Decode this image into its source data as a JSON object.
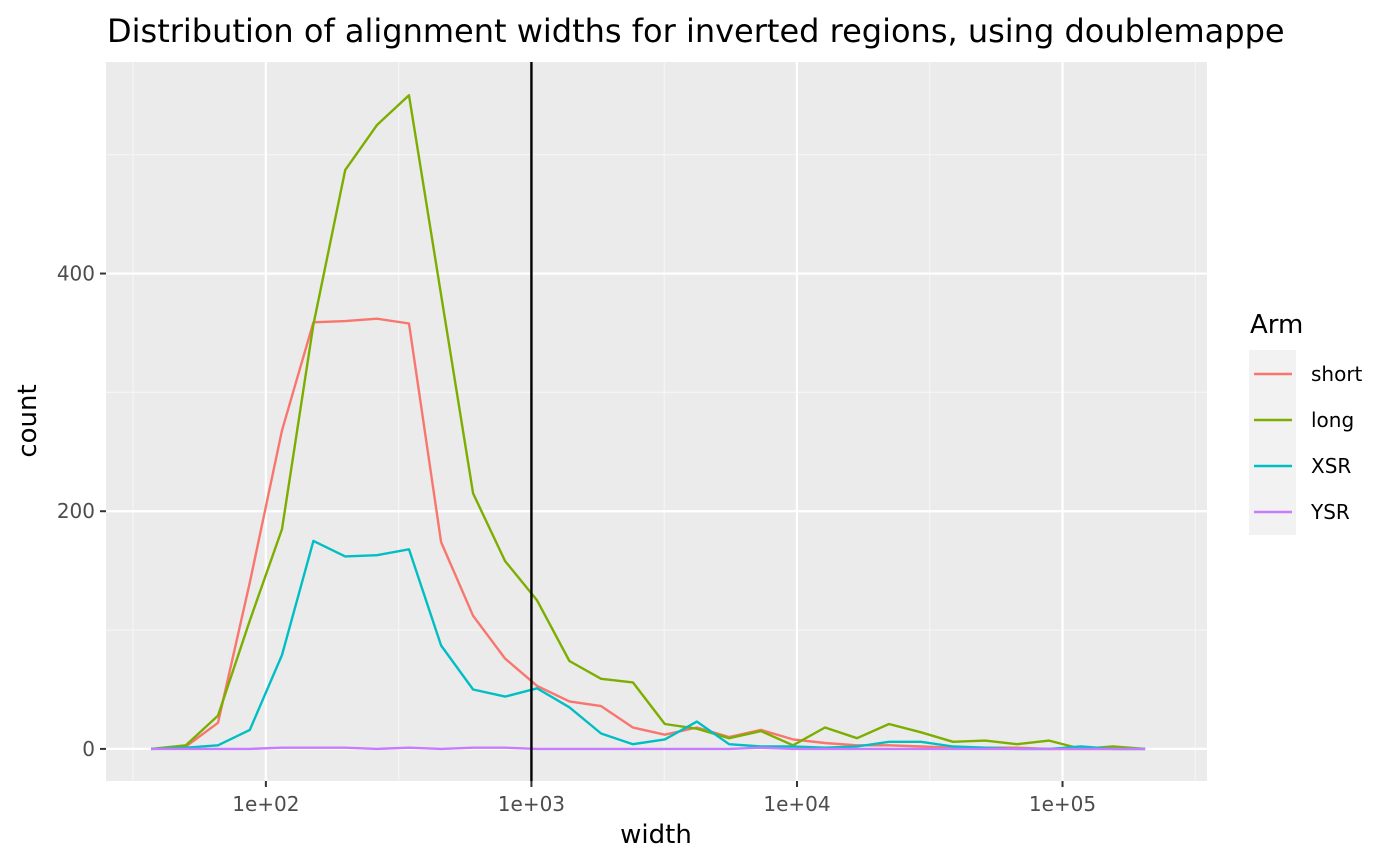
{
  "chart_data": {
    "type": "line",
    "title": "Distribution of alignment widths for inverted regions, using doublemappe",
    "xlabel": "width",
    "ylabel": "count",
    "x_scale": "log10",
    "xlim": [
      25,
      350000
    ],
    "ylim": [
      -27,
      578
    ],
    "x_ticks": [
      100,
      1000,
      10000,
      100000
    ],
    "x_tick_labels": [
      "1e+02",
      "1e+03",
      "1e+04",
      "1e+05"
    ],
    "y_ticks": [
      0,
      200,
      400
    ],
    "y_tick_labels": [
      "0",
      "200",
      "400"
    ],
    "grid": true,
    "vline": 1000,
    "legend": {
      "title": "Arm",
      "position": "right"
    },
    "x": [
      37,
      50,
      66,
      87,
      115,
      151,
      199,
      262,
      346,
      457,
      603,
      796,
      1050,
      1390,
      1830,
      2410,
      3180,
      4200,
      5550,
      7320,
      9660,
      12750,
      16830,
      22210,
      29320,
      38700,
      51080,
      67420,
      88990,
      117460,
      155040,
      204640
    ],
    "series": [
      {
        "name": "short",
        "color": "#F8766D",
        "values": [
          0,
          2,
          22,
          140,
          268,
          359,
          360,
          362,
          358,
          174,
          112,
          76,
          53,
          40,
          36,
          18,
          12,
          18,
          10,
          16,
          8,
          5,
          3,
          3,
          2,
          1,
          1,
          1,
          0,
          0,
          0,
          0
        ]
      },
      {
        "name": "long",
        "color": "#7CAE00",
        "values": [
          0,
          3,
          28,
          108,
          185,
          357,
          487,
          525,
          550,
          382,
          215,
          158,
          125,
          74,
          59,
          56,
          21,
          17,
          9,
          15,
          3,
          18,
          9,
          21,
          14,
          6,
          7,
          4,
          7,
          0,
          2,
          0
        ]
      },
      {
        "name": "XSR",
        "color": "#00BFC4",
        "values": [
          0,
          1,
          3,
          16,
          79,
          175,
          162,
          163,
          168,
          87,
          50,
          44,
          51,
          35,
          13,
          4,
          8,
          23,
          4,
          2,
          2,
          1,
          2,
          6,
          6,
          2,
          1,
          0,
          0,
          2,
          0,
          0
        ]
      },
      {
        "name": "YSR",
        "color": "#C77CFF",
        "values": [
          0,
          0,
          0,
          0,
          1,
          1,
          1,
          0,
          1,
          0,
          1,
          1,
          0,
          0,
          0,
          0,
          0,
          0,
          0,
          1,
          0,
          0,
          0,
          0,
          0,
          0,
          0,
          0,
          0,
          0,
          0,
          0
        ]
      }
    ]
  }
}
